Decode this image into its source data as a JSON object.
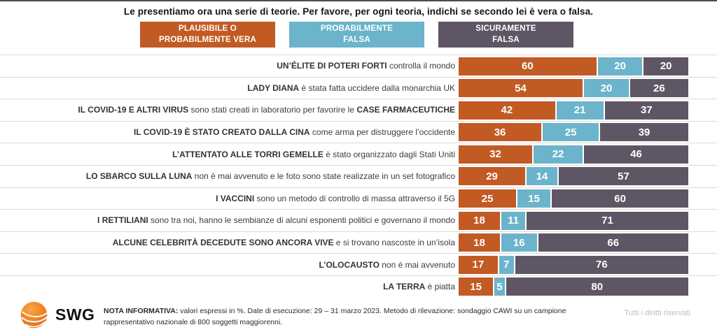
{
  "page": {
    "title": "Le presentiamo ora una serie di teorie. Per favore, per ogni teoria, indichi se secondo lei è vera o falsa.",
    "logo_text": "SWG",
    "note_label": "NOTA INFORMATIVA:",
    "note_text": " valori espressi in %. Date di esecuzione: 29 – 31 marzo 2023. Metodo di rilevazione: sondaggio CAWI su un campione rappresentativo nazionale di 800 soggetti maggiorenni.",
    "rights_notice": "Tutti i diritti riservati"
  },
  "colors": {
    "vera": "#c25a24",
    "probabilmente_falsa": "#6bb4cb",
    "sicuramente_falsa": "#5e5665",
    "separator": "#dcdad9"
  },
  "chart_data": {
    "type": "bar",
    "orientation": "horizontal",
    "stacked": true,
    "unit": "%",
    "xlim": [
      0,
      100
    ],
    "grid": false,
    "legend_position": "top",
    "legend": [
      {
        "key": "vera",
        "label": "PLAUSIBILE O\nPROBABILMENTE VERA",
        "color": "#c25a24"
      },
      {
        "key": "probabilmente-falsa",
        "label": "PROBABILMENTE\nFALSA",
        "color": "#6bb4cb"
      },
      {
        "key": "sicuramente-falsa",
        "label": "SICURAMENTE\nFALSA",
        "color": "#5e5665"
      }
    ],
    "rows": [
      {
        "label_segments": [
          {
            "text": "UN’ÉLITE DI POTERI FORTI",
            "bold": true
          },
          {
            "text": " controlla il mondo",
            "bold": false
          }
        ],
        "values": [
          60,
          20,
          20
        ]
      },
      {
        "label_segments": [
          {
            "text": "LADY DIANA",
            "bold": true
          },
          {
            "text": " è stata fatta uccidere dalla monarchia UK",
            "bold": false
          }
        ],
        "values": [
          54,
          20,
          26
        ]
      },
      {
        "label_segments": [
          {
            "text": "IL COVID-19 E ALTRI VIRUS",
            "bold": true
          },
          {
            "text": " sono stati creati in laboratorio per favorire le ",
            "bold": false
          },
          {
            "text": "CASE FARMACEUTICHE",
            "bold": true
          }
        ],
        "values": [
          42,
          21,
          37
        ]
      },
      {
        "label_segments": [
          {
            "text": "IL COVID-19 È STATO CREATO DALLA CINA",
            "bold": true
          },
          {
            "text": " come arma per distruggere l’occidente",
            "bold": false
          }
        ],
        "values": [
          36,
          25,
          39
        ]
      },
      {
        "label_segments": [
          {
            "text": "L’ATTENTATO ALLE TORRI GEMELLE",
            "bold": true
          },
          {
            "text": " è stato organizzato dagli Stati Uniti",
            "bold": false
          }
        ],
        "values": [
          32,
          22,
          46
        ]
      },
      {
        "label_segments": [
          {
            "text": "LO SBARCO SULLA LUNA",
            "bold": true
          },
          {
            "text": " non è mai avvenuto e le foto sono state realizzate in un set fotografico",
            "bold": false
          }
        ],
        "values": [
          29,
          14,
          57
        ]
      },
      {
        "label_segments": [
          {
            "text": "I VACCINI",
            "bold": true
          },
          {
            "text": " sono un metodo di controllo di massa attraverso il 5G",
            "bold": false
          }
        ],
        "values": [
          25,
          15,
          60
        ]
      },
      {
        "label_segments": [
          {
            "text": "I RETTILIANI",
            "bold": true
          },
          {
            "text": " sono tra noi, hanno le sembianze di alcuni esponenti politici e governano il mondo",
            "bold": false
          }
        ],
        "values": [
          18,
          11,
          71
        ]
      },
      {
        "label_segments": [
          {
            "text": "ALCUNE CELEBRITÀ DECEDUTE SONO ANCORA VIVE",
            "bold": true
          },
          {
            "text": " e si trovano nascoste in un’isola",
            "bold": false
          }
        ],
        "values": [
          18,
          16,
          66
        ]
      },
      {
        "label_segments": [
          {
            "text": "L’OLOCAUSTO",
            "bold": true
          },
          {
            "text": " non è mai avvenuto",
            "bold": false
          }
        ],
        "values": [
          17,
          7,
          76
        ]
      },
      {
        "label_segments": [
          {
            "text": "LA TERRA",
            "bold": true
          },
          {
            "text": " è piatta",
            "bold": false
          }
        ],
        "values": [
          15,
          5,
          80
        ]
      }
    ]
  }
}
